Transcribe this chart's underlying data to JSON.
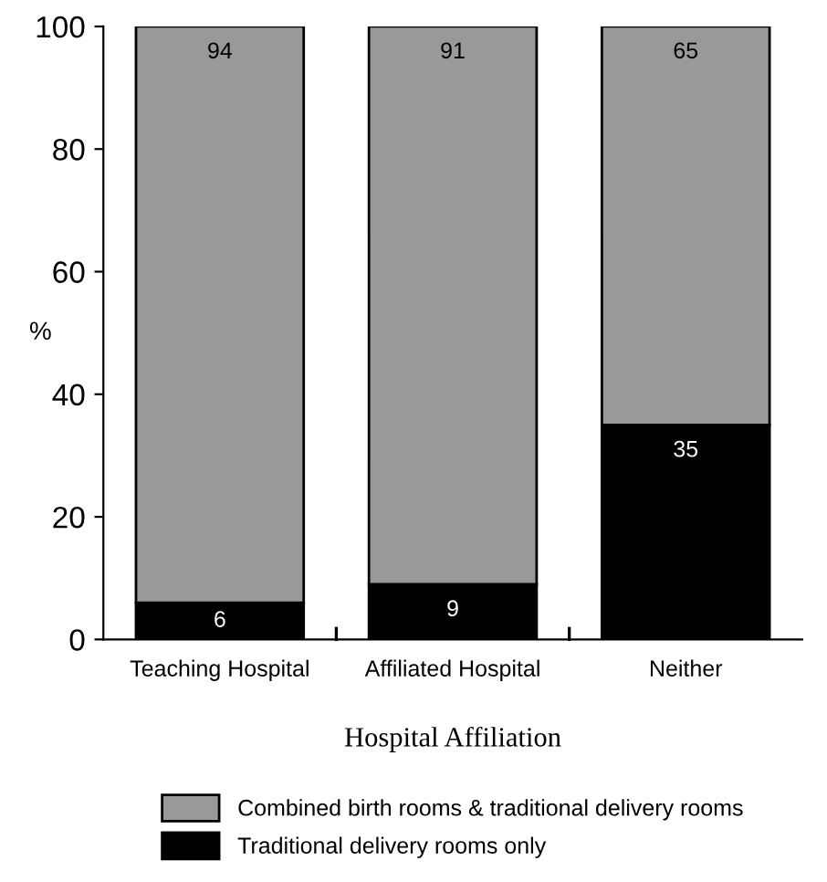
{
  "chart_data": {
    "type": "bar",
    "stacked": true,
    "xlabel": "Hospital Affiliation",
    "ylabel": "%",
    "categories": [
      "Teaching Hospital",
      "Affiliated Hospital",
      "Neither"
    ],
    "series": [
      {
        "name": "Traditional delivery rooms only",
        "color": "#000000",
        "values": [
          6,
          9,
          35
        ]
      },
      {
        "name": "Combined birth rooms & traditional delivery rooms",
        "color": "#999999",
        "values": [
          94,
          91,
          65
        ]
      }
    ],
    "ylim": [
      0,
      100
    ],
    "yticks": [
      0,
      20,
      40,
      60,
      80,
      100
    ],
    "data_labels": true,
    "legend": "bottom",
    "grid": false
  }
}
